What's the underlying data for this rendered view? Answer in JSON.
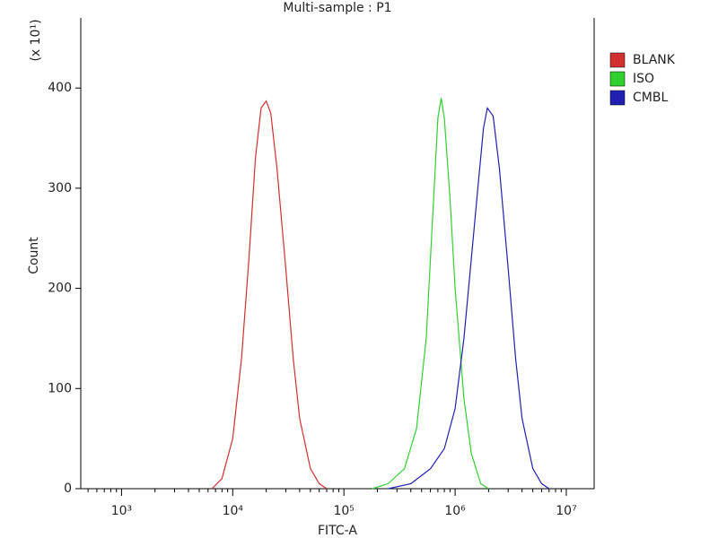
{
  "chart_data": {
    "type": "line",
    "title": "Multi-sample : P1",
    "x_label": "FITC-A",
    "y_label": "Count",
    "y_scale_note": "(x 10¹)",
    "x_log": true,
    "legend_position": "right",
    "xlim": [
      430,
      17800000
    ],
    "xticks": [
      {
        "value": 1000,
        "label": "10³"
      },
      {
        "value": 10000,
        "label": "10⁴"
      },
      {
        "value": 100000,
        "label": "10⁵"
      },
      {
        "value": 1000000,
        "label": "10⁶"
      },
      {
        "value": 10000000,
        "label": "10⁷"
      }
    ],
    "ylim": [
      0,
      470
    ],
    "yticks": [
      0,
      100,
      200,
      300,
      400
    ],
    "series": [
      {
        "name": "BLANK",
        "color": "#d03030",
        "x": [
          6500,
          8000,
          10000,
          12000,
          14000,
          16000,
          18000,
          20000,
          22000,
          25000,
          30000,
          35000,
          40000,
          50000,
          60000,
          70000
        ],
        "values": [
          0,
          10,
          50,
          130,
          230,
          330,
          380,
          387,
          375,
          320,
          220,
          130,
          70,
          20,
          5,
          0
        ]
      },
      {
        "name": "ISO",
        "color": "#30d030",
        "x": [
          180000,
          250000,
          350000,
          450000,
          550000,
          620000,
          700000,
          750000,
          800000,
          900000,
          1000000,
          1200000,
          1400000,
          1700000,
          2000000
        ],
        "values": [
          0,
          5,
          20,
          60,
          150,
          260,
          370,
          390,
          370,
          290,
          200,
          90,
          35,
          5,
          0
        ]
      },
      {
        "name": "CMBL",
        "color": "#2020b0",
        "x": [
          250000,
          400000,
          600000,
          800000,
          1000000,
          1200000,
          1400000,
          1600000,
          1800000,
          1950000,
          2200000,
          2500000,
          3000000,
          3500000,
          4000000,
          5000000,
          6000000,
          7000000
        ],
        "values": [
          0,
          5,
          20,
          40,
          80,
          150,
          230,
          300,
          360,
          380,
          372,
          320,
          220,
          130,
          70,
          20,
          5,
          0
        ]
      }
    ]
  }
}
